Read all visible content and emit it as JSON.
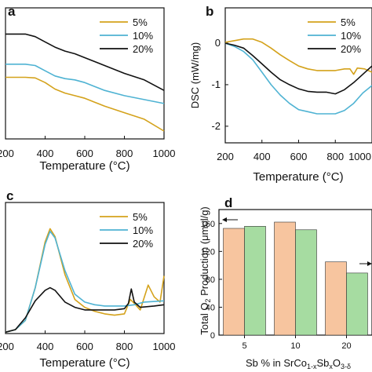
{
  "chart_data": [
    {
      "panel_label": "a",
      "type": "line",
      "xlabel": "Temperature (°C)",
      "ylabel": "",
      "xlim": [
        200,
        1000
      ],
      "ylim": [
        0,
        100
      ],
      "x_ticks": [
        "200",
        "400",
        "600",
        "800",
        "1000"
      ],
      "legend_position": "top-right",
      "series": [
        {
          "name": "5%",
          "color": "#d4a21b",
          "points": [
            [
              200,
              47
            ],
            [
              300,
              47
            ],
            [
              350,
              46.5
            ],
            [
              400,
              43
            ],
            [
              450,
              38
            ],
            [
              500,
              35
            ],
            [
              550,
              33
            ],
            [
              600,
              31
            ],
            [
              650,
              28
            ],
            [
              700,
              25
            ],
            [
              800,
              20
            ],
            [
              900,
              15
            ],
            [
              1000,
              6
            ]
          ]
        },
        {
          "name": "10%",
          "color": "#4fb3d3",
          "points": [
            [
              200,
              57
            ],
            [
              300,
              57
            ],
            [
              350,
              56
            ],
            [
              400,
              52
            ],
            [
              450,
              48
            ],
            [
              500,
              46
            ],
            [
              550,
              45
            ],
            [
              600,
              43
            ],
            [
              650,
              40
            ],
            [
              700,
              37
            ],
            [
              800,
              33
            ],
            [
              900,
              30
            ],
            [
              1000,
              27
            ]
          ]
        },
        {
          "name": "20%",
          "color": "#111111",
          "points": [
            [
              200,
              80
            ],
            [
              250,
              80
            ],
            [
              300,
              80
            ],
            [
              350,
              78
            ],
            [
              400,
              74
            ],
            [
              450,
              70
            ],
            [
              500,
              67
            ],
            [
              550,
              65
            ],
            [
              600,
              62
            ],
            [
              700,
              56
            ],
            [
              800,
              50
            ],
            [
              900,
              45
            ],
            [
              1000,
              37
            ]
          ]
        }
      ]
    },
    {
      "panel_label": "b",
      "type": "line",
      "xlabel": "Temperature (°C)",
      "ylabel": "DSC (mW/mg)",
      "xlim": [
        200,
        1000
      ],
      "ylim": [
        -2.4,
        0.85
      ],
      "x_ticks": [
        "200",
        "400",
        "600",
        "800",
        "1000"
      ],
      "y_ticks": [
        "-2",
        "-1",
        "0"
      ],
      "legend_position": "top-right",
      "series": [
        {
          "name": "5%",
          "color": "#d4a21b",
          "points": [
            [
              200,
              0.02
            ],
            [
              250,
              0.06
            ],
            [
              300,
              0.1
            ],
            [
              350,
              0.1
            ],
            [
              400,
              0.02
            ],
            [
              450,
              -0.12
            ],
            [
              500,
              -0.28
            ],
            [
              550,
              -0.42
            ],
            [
              600,
              -0.55
            ],
            [
              650,
              -0.62
            ],
            [
              700,
              -0.66
            ],
            [
              750,
              -0.66
            ],
            [
              800,
              -0.66
            ],
            [
              850,
              -0.62
            ],
            [
              880,
              -0.62
            ],
            [
              900,
              -0.75
            ],
            [
              920,
              -0.6
            ],
            [
              960,
              -0.62
            ],
            [
              1000,
              -0.7
            ]
          ]
        },
        {
          "name": "10%",
          "color": "#4fb3d3",
          "points": [
            [
              200,
              0
            ],
            [
              250,
              -0.08
            ],
            [
              300,
              -0.2
            ],
            [
              350,
              -0.4
            ],
            [
              400,
              -0.7
            ],
            [
              450,
              -1.0
            ],
            [
              500,
              -1.25
            ],
            [
              550,
              -1.45
            ],
            [
              600,
              -1.6
            ],
            [
              650,
              -1.65
            ],
            [
              700,
              -1.7
            ],
            [
              750,
              -1.7
            ],
            [
              800,
              -1.7
            ],
            [
              850,
              -1.62
            ],
            [
              900,
              -1.45
            ],
            [
              950,
              -1.2
            ],
            [
              1000,
              -1.02
            ]
          ]
        },
        {
          "name": "20%",
          "color": "#111111",
          "points": [
            [
              200,
              0
            ],
            [
              250,
              -0.05
            ],
            [
              300,
              -0.12
            ],
            [
              350,
              -0.3
            ],
            [
              400,
              -0.5
            ],
            [
              450,
              -0.7
            ],
            [
              500,
              -0.88
            ],
            [
              550,
              -1.0
            ],
            [
              600,
              -1.1
            ],
            [
              650,
              -1.16
            ],
            [
              700,
              -1.18
            ],
            [
              750,
              -1.18
            ],
            [
              800,
              -1.22
            ],
            [
              850,
              -1.12
            ],
            [
              900,
              -0.95
            ],
            [
              950,
              -0.75
            ],
            [
              1000,
              -0.55
            ]
          ]
        }
      ]
    },
    {
      "panel_label": "c",
      "type": "line",
      "xlabel": "Temperature (°C)",
      "ylabel": "",
      "xlim": [
        200,
        1000
      ],
      "ylim": [
        0,
        100
      ],
      "x_ticks": [
        "200",
        "400",
        "600",
        "800",
        "1000"
      ],
      "legend_position": "top-right",
      "series": [
        {
          "name": "5%",
          "color": "#d4a21b",
          "points": [
            [
              200,
              1
            ],
            [
              250,
              3
            ],
            [
              300,
              10
            ],
            [
              350,
              35
            ],
            [
              400,
              70
            ],
            [
              425,
              80
            ],
            [
              450,
              74
            ],
            [
              500,
              45
            ],
            [
              550,
              26
            ],
            [
              600,
              20
            ],
            [
              650,
              17
            ],
            [
              700,
              15
            ],
            [
              750,
              14
            ],
            [
              800,
              15
            ],
            [
              830,
              26
            ],
            [
              850,
              23
            ],
            [
              880,
              18
            ],
            [
              920,
              37
            ],
            [
              950,
              28
            ],
            [
              980,
              24
            ],
            [
              1000,
              44
            ]
          ]
        },
        {
          "name": "10%",
          "color": "#4fb3d3",
          "points": [
            [
              200,
              1
            ],
            [
              250,
              3
            ],
            [
              300,
              10
            ],
            [
              350,
              35
            ],
            [
              400,
              68
            ],
            [
              425,
              78
            ],
            [
              450,
              73
            ],
            [
              500,
              48
            ],
            [
              550,
              30
            ],
            [
              600,
              24
            ],
            [
              650,
              22
            ],
            [
              700,
              21
            ],
            [
              750,
              21
            ],
            [
              800,
              21
            ],
            [
              850,
              22
            ],
            [
              900,
              24
            ],
            [
              1000,
              25
            ]
          ]
        },
        {
          "name": "20%",
          "color": "#111111",
          "points": [
            [
              200,
              1
            ],
            [
              250,
              3
            ],
            [
              300,
              12
            ],
            [
              350,
              25
            ],
            [
              400,
              33
            ],
            [
              425,
              35
            ],
            [
              450,
              33
            ],
            [
              500,
              24
            ],
            [
              550,
              20
            ],
            [
              600,
              18
            ],
            [
              650,
              18
            ],
            [
              700,
              18
            ],
            [
              750,
              18
            ],
            [
              800,
              19
            ],
            [
              820,
              23
            ],
            [
              835,
              34
            ],
            [
              850,
              24
            ],
            [
              880,
              20
            ],
            [
              950,
              21
            ],
            [
              1000,
              22
            ]
          ]
        }
      ]
    },
    {
      "panel_label": "d",
      "type": "bar",
      "xlabel": "Sb % in SrCo1-xSbxO3-δ",
      "ylabel": "Total O2 Production (μmol/g)",
      "categories": [
        "5",
        "10",
        "20"
      ],
      "ylim": [
        0,
        180
      ],
      "y_ticks": [
        "0",
        "40",
        "80",
        "120",
        "160"
      ],
      "series": [
        {
          "color": "#f7c59f",
          "values": [
            153,
            162,
            105
          ]
        },
        {
          "color": "#a6dca1",
          "values": [
            156,
            151,
            89
          ]
        }
      ]
    }
  ]
}
